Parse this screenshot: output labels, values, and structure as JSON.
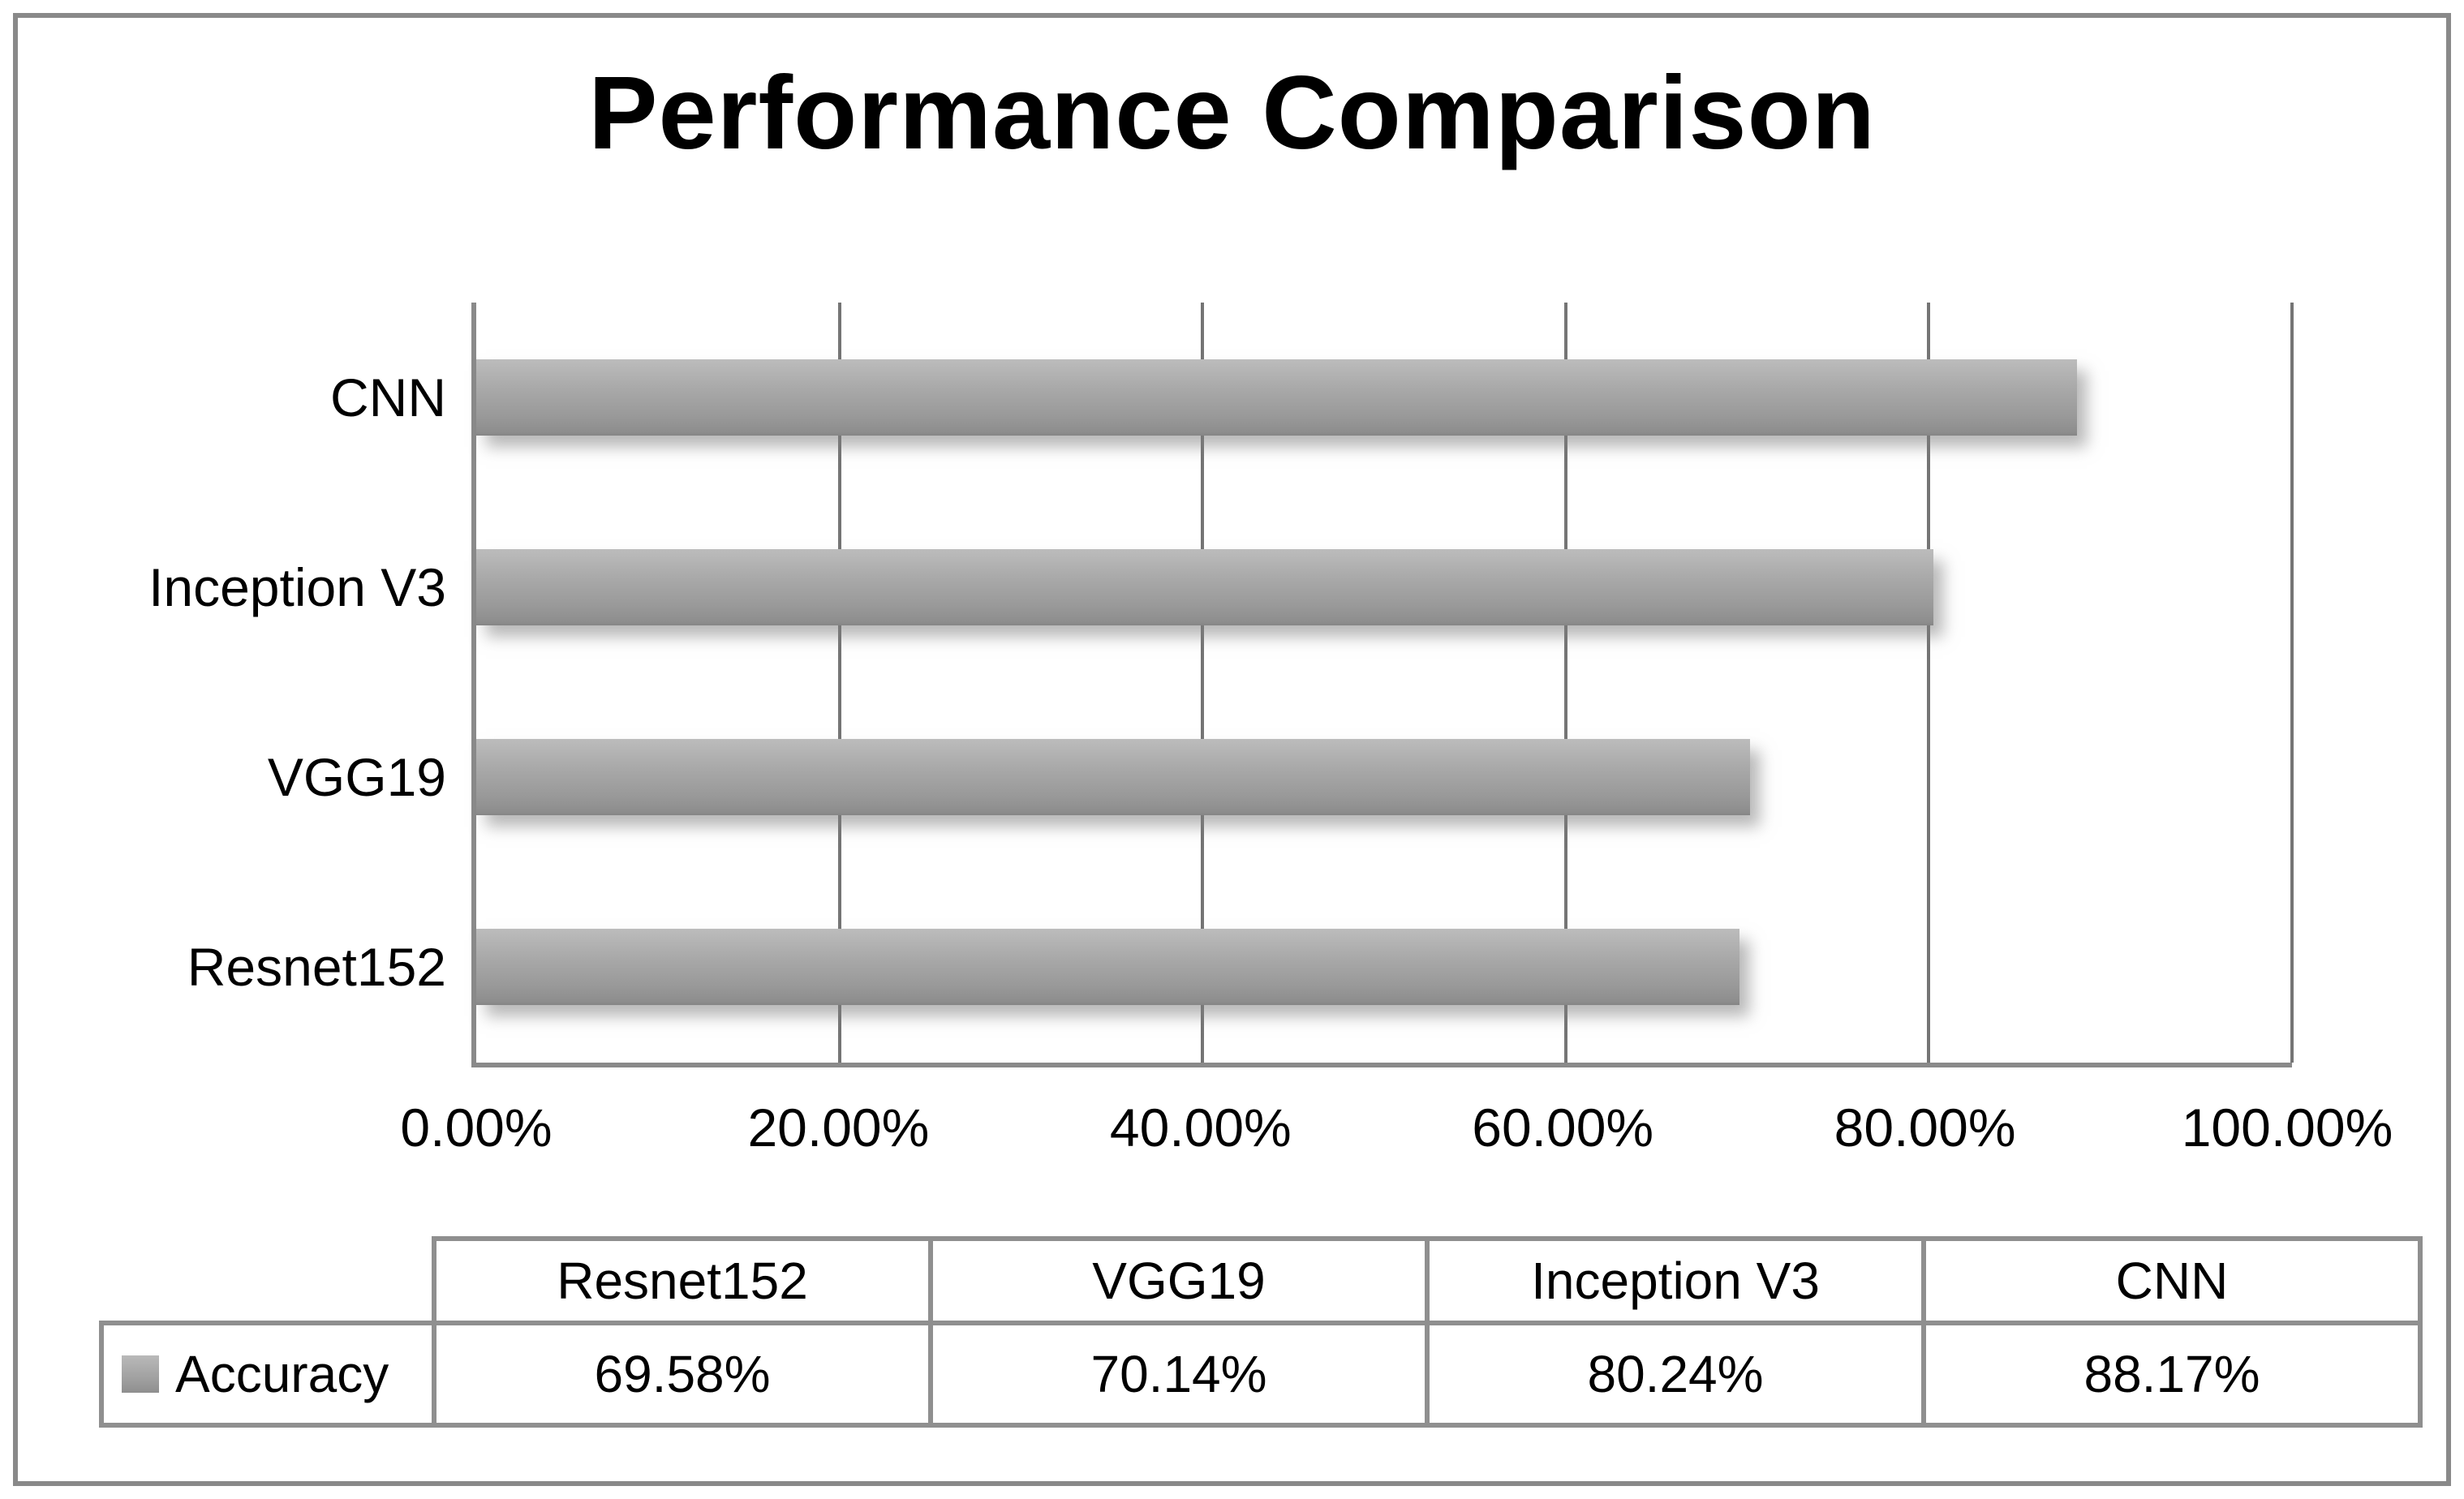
{
  "chart_data": {
    "type": "bar",
    "orientation": "horizontal",
    "title": "Performance Comparison",
    "bars": [
      {
        "label": "CNN",
        "value": 88.17,
        "display": "88.17%"
      },
      {
        "label": "Inception V3",
        "value": 80.24,
        "display": "80.24%"
      },
      {
        "label": "VGG19",
        "value": 70.14,
        "display": "70.14%"
      },
      {
        "label": "Resnet152",
        "value": 69.58,
        "display": "69.58%"
      }
    ],
    "x_axis": {
      "min": 0,
      "max": 100,
      "ticks": [
        "0.00%",
        "20.00%",
        "40.00%",
        "60.00%",
        "80.00%",
        "100.00%"
      ],
      "gridlines": true
    },
    "legend": {
      "position": "table-left",
      "series_label": "Accuracy",
      "swatch_color": "#9d9d9d"
    },
    "bar_color": "#9d9d9d"
  },
  "table": {
    "row_label": "Accuracy",
    "headers": [
      "Resnet152",
      "VGG19",
      "Inception V3",
      "CNN"
    ],
    "values": [
      "69.58%",
      "70.14%",
      "80.24%",
      "88.17%"
    ]
  },
  "colors": {
    "bar_gray": "#9d9d9d",
    "gridline": "#757575",
    "axis": "#8a8a8a",
    "frame_border": "#898989",
    "table_border": "#8f8f8f",
    "text": "#000000",
    "background": "#ffffff"
  }
}
